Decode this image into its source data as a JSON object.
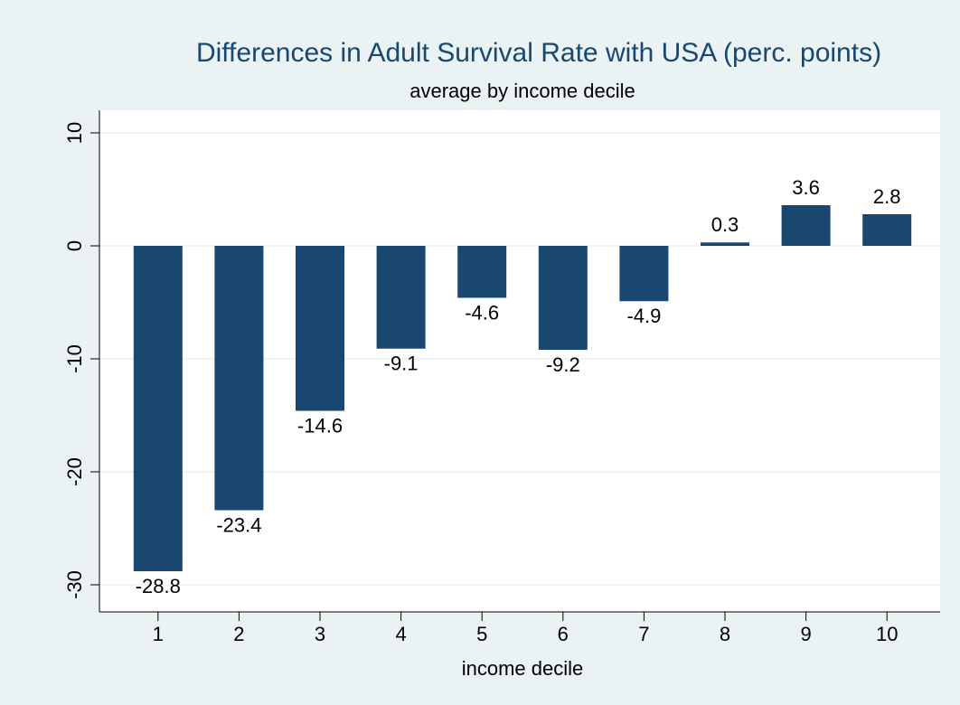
{
  "chart_data": {
    "type": "bar",
    "title": "Differences in Adult Survival Rate with USA (perc. points)",
    "subtitle": "average by income decile",
    "x_label": "income decile",
    "categories": [
      "1",
      "2",
      "3",
      "4",
      "5",
      "6",
      "7",
      "8",
      "9",
      "10"
    ],
    "values": [
      -28.8,
      -23.4,
      -14.6,
      -9.1,
      -4.6,
      -9.2,
      -4.9,
      0.3,
      3.6,
      2.8
    ],
    "color": "#1a476f",
    "ylim": [
      -32.4,
      12
    ],
    "yticks": [
      -30,
      -20,
      -10,
      0,
      10
    ],
    "grid": true
  }
}
